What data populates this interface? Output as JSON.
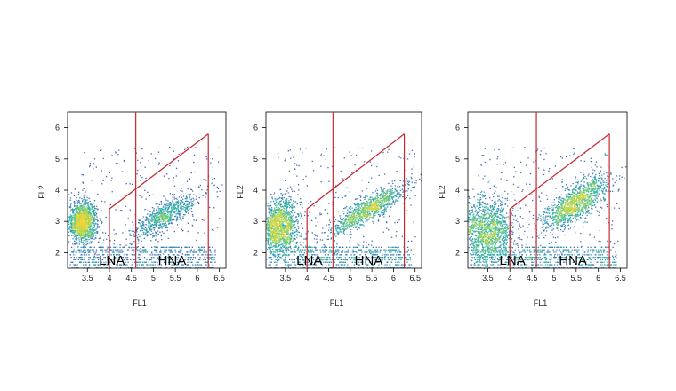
{
  "chart_data": [
    {
      "type": "scatter",
      "title": "",
      "xlabel": "FL1",
      "ylabel": "FL2",
      "xlim": [
        3.05,
        6.65
      ],
      "ylim": [
        1.5,
        6.5
      ],
      "x_ticks": [
        3.5,
        4,
        4.5,
        5,
        5.5,
        6,
        6.5
      ],
      "x_tick_labels": [
        "3.5",
        "4",
        "4.5",
        "5",
        "5.5",
        "6",
        "6.5"
      ],
      "y_ticks": [
        2,
        3,
        4,
        5,
        6
      ],
      "y_tick_labels": [
        "2",
        "3",
        "4",
        "5",
        "6"
      ],
      "grid": false,
      "colormap": [
        "#3b2ca0",
        "#2f74b5",
        "#27b3a3",
        "#a9d653",
        "#f2d233"
      ],
      "gates": [
        {
          "label": "LNA",
          "x_range": [
            4.0,
            4.6
          ],
          "y_top_at_x4": 3.4
        },
        {
          "label": "HNA",
          "x_range": [
            4.6,
            6.25
          ],
          "y_top_at_right": 5.8
        }
      ],
      "clusters": [
        {
          "name": "LNA",
          "x": 3.38,
          "y": 3.0,
          "sx": 0.16,
          "sy": 0.32,
          "weight": 1.0
        },
        {
          "name": "HNA",
          "x": 5.25,
          "y": 3.2,
          "sx": 0.38,
          "sy": 0.22,
          "weight": 0.55,
          "slope": 0.75
        }
      ],
      "region_labels": [
        "LNA",
        "HNA"
      ]
    },
    {
      "type": "scatter",
      "title": "",
      "xlabel": "FL1",
      "ylabel": "FL2",
      "xlim": [
        3.05,
        6.65
      ],
      "ylim": [
        1.5,
        6.5
      ],
      "x_ticks": [
        3.5,
        4,
        4.5,
        5,
        5.5,
        6,
        6.5
      ],
      "x_tick_labels": [
        "3.5",
        "4",
        "4.5",
        "5",
        "5.5",
        "6",
        "6.5"
      ],
      "y_ticks": [
        2,
        3,
        4,
        5,
        6
      ],
      "y_tick_labels": [
        "2",
        "3",
        "4",
        "5",
        "6"
      ],
      "grid": false,
      "colormap": [
        "#3b2ca0",
        "#2f74b5",
        "#27b3a3",
        "#a9d653",
        "#f2d233"
      ],
      "gates": [
        {
          "label": "LNA",
          "x_range": [
            4.0,
            4.6
          ],
          "y_top_at_x4": 3.4
        },
        {
          "label": "HNA",
          "x_range": [
            4.6,
            6.25
          ],
          "y_top_at_right": 5.8
        }
      ],
      "clusters": [
        {
          "name": "LNA",
          "x": 3.35,
          "y": 2.85,
          "sx": 0.22,
          "sy": 0.45,
          "weight": 1.0
        },
        {
          "name": "HNA",
          "x": 5.4,
          "y": 3.4,
          "sx": 0.45,
          "sy": 0.2,
          "weight": 0.75,
          "slope": 0.8
        }
      ],
      "region_labels": [
        "LNA",
        "HNA"
      ]
    },
    {
      "type": "scatter",
      "title": "",
      "xlabel": "FL1",
      "ylabel": "FL2",
      "xlim": [
        3.05,
        6.65
      ],
      "ylim": [
        1.5,
        6.5
      ],
      "x_ticks": [
        3.5,
        4,
        4.5,
        5,
        5.5,
        6,
        6.5
      ],
      "x_tick_labels": [
        "3.5",
        "4",
        "4.5",
        "5",
        "5.5",
        "6",
        "6.5"
      ],
      "y_ticks": [
        2,
        3,
        4,
        5,
        6
      ],
      "y_tick_labels": [
        "2",
        "3",
        "4",
        "5",
        "6"
      ],
      "grid": false,
      "colormap": [
        "#3b2ca0",
        "#2f74b5",
        "#27b3a3",
        "#a9d653",
        "#f2d233"
      ],
      "gates": [
        {
          "label": "LNA",
          "x_range": [
            4.0,
            4.6
          ],
          "y_top_at_x4": 3.4
        },
        {
          "label": "HNA",
          "x_range": [
            4.6,
            6.25
          ],
          "y_top_at_right": 5.8
        }
      ],
      "clusters": [
        {
          "name": "LNA",
          "x": 3.45,
          "y": 2.75,
          "sx": 0.32,
          "sy": 0.5,
          "weight": 1.0
        },
        {
          "name": "HNA",
          "x": 5.45,
          "y": 3.6,
          "sx": 0.38,
          "sy": 0.28,
          "weight": 0.9,
          "slope": 0.9
        }
      ],
      "region_labels": [
        "LNA",
        "HNA"
      ]
    }
  ]
}
